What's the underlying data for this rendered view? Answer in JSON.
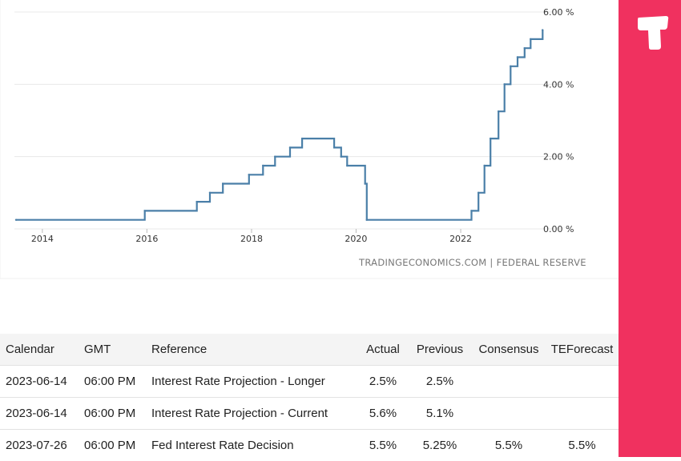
{
  "chart_data": {
    "type": "line",
    "step": true,
    "x_axis": {
      "ticks": [
        "2014",
        "2016",
        "2018",
        "2020",
        "2022"
      ]
    },
    "y_axis": {
      "ticks": [
        "0.00 %",
        "2.00 %",
        "4.00 %",
        "6.00 %"
      ],
      "range": [
        0,
        6
      ],
      "position": "right"
    },
    "grid": "horizontal",
    "line_color": "#4a7fa8",
    "series": [
      {
        "x": [
          "2013-07-01",
          "2015-12-17",
          "2016-12-15",
          "2017-03-16",
          "2017-06-15",
          "2017-12-14",
          "2018-03-22",
          "2018-06-14",
          "2018-09-27",
          "2018-12-20",
          "2019-08-01",
          "2019-09-19",
          "2019-10-31",
          "2020-03-04",
          "2020-03-16",
          "2022-03-17",
          "2022-05-05",
          "2022-06-16",
          "2022-07-28",
          "2022-09-22",
          "2022-11-03",
          "2022-12-15",
          "2023-02-02",
          "2023-03-23",
          "2023-05-04",
          "2023-07-27"
        ],
        "values": [
          0.25,
          0.5,
          0.75,
          1.0,
          1.25,
          1.5,
          1.75,
          2.0,
          2.25,
          2.5,
          2.25,
          2.0,
          1.75,
          1.25,
          0.25,
          0.5,
          1.0,
          1.75,
          2.5,
          3.25,
          4.0,
          4.5,
          4.75,
          5.0,
          5.25,
          5.5
        ]
      }
    ]
  },
  "source": "TRADINGECONOMICS.COM  |  FEDERAL RESERVE",
  "colors": {
    "brand": "#f0315f",
    "line": "#4a7fa8"
  },
  "icons": {
    "logo": "tradingeconomics-logo-icon"
  },
  "calendar": {
    "headers": {
      "calendar": "Calendar",
      "gmt": "GMT",
      "reference": "Reference",
      "actual": "Actual",
      "previous": "Previous",
      "consensus": "Consensus",
      "teforecast": "TEForecast"
    },
    "rows": [
      {
        "date": "2023-06-14",
        "gmt": "06:00 PM",
        "reference": "Interest Rate Projection - Longer",
        "actual": "2.5%",
        "previous": "2.5%",
        "consensus": "",
        "teforecast": ""
      },
      {
        "date": "2023-06-14",
        "gmt": "06:00 PM",
        "reference": "Interest Rate Projection - Current",
        "actual": "5.6%",
        "previous": "5.1%",
        "consensus": "",
        "teforecast": ""
      },
      {
        "date": "2023-07-26",
        "gmt": "06:00 PM",
        "reference": "Fed Interest Rate Decision",
        "actual": "5.5%",
        "previous": "5.25%",
        "consensus": "5.5%",
        "teforecast": "5.5%"
      }
    ]
  }
}
